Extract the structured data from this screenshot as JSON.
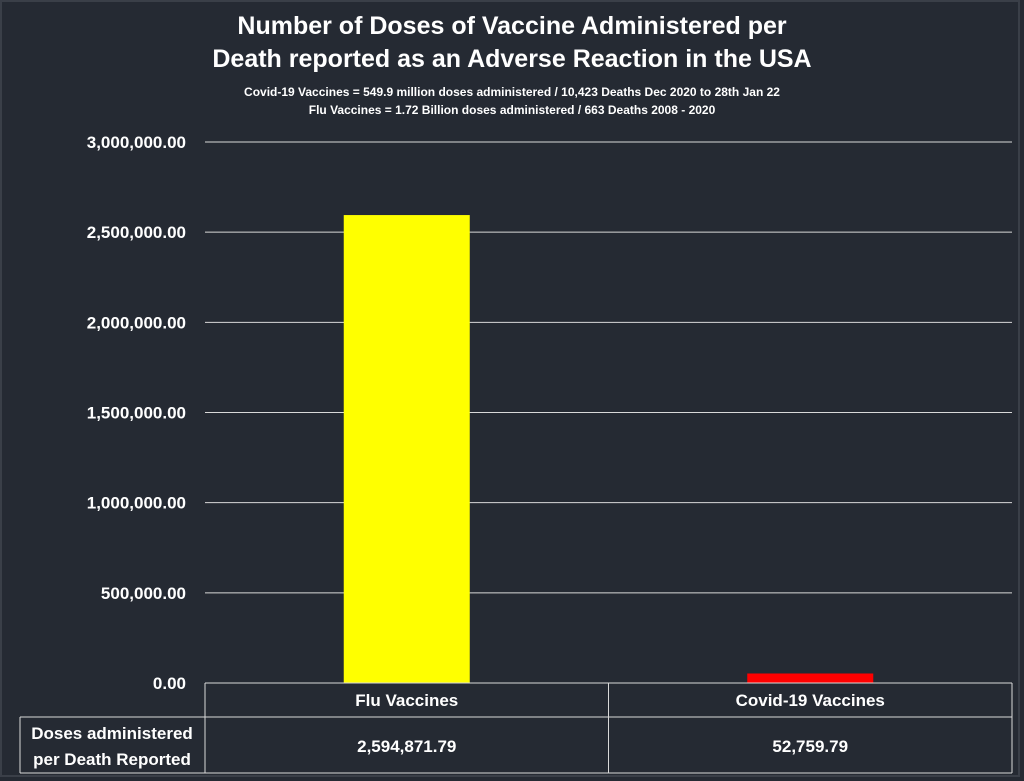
{
  "chart_data": {
    "type": "bar",
    "title_lines": [
      "Number of Doses of Vaccine Administered per",
      "Death reported as an Adverse Reaction in the USA"
    ],
    "subtitle_lines": [
      "Covid-19 Vaccines = 549.9 million doses administered / 10,423 Deaths Dec 2020 to 28th Jan 22",
      "Flu Vaccines = 1.72 Billion doses administered / 663 Deaths 2008 - 2020"
    ],
    "categories": [
      "Flu Vaccines",
      "Covid-19 Vaccines"
    ],
    "series": [
      {
        "values": [
          2594871.79,
          52759.79
        ],
        "colors": [
          "#ffff00",
          "#ff0000"
        ]
      }
    ],
    "ylim": [
      0,
      3000000
    ],
    "yticks": [
      0,
      500000,
      1000000,
      1500000,
      2000000,
      2500000,
      3000000
    ],
    "ytick_labels": [
      "0.00",
      "500,000.00",
      "1,000,000.00",
      "1,500,000.00",
      "2,000,000.00",
      "2,500,000.00",
      "3,000,000.00"
    ],
    "grid": true,
    "legend": "none",
    "data_table": {
      "row_label_lines": [
        "Doses administered",
        "per Death Reported"
      ],
      "values": [
        "2,594,871.79",
        "52,759.79"
      ]
    }
  }
}
